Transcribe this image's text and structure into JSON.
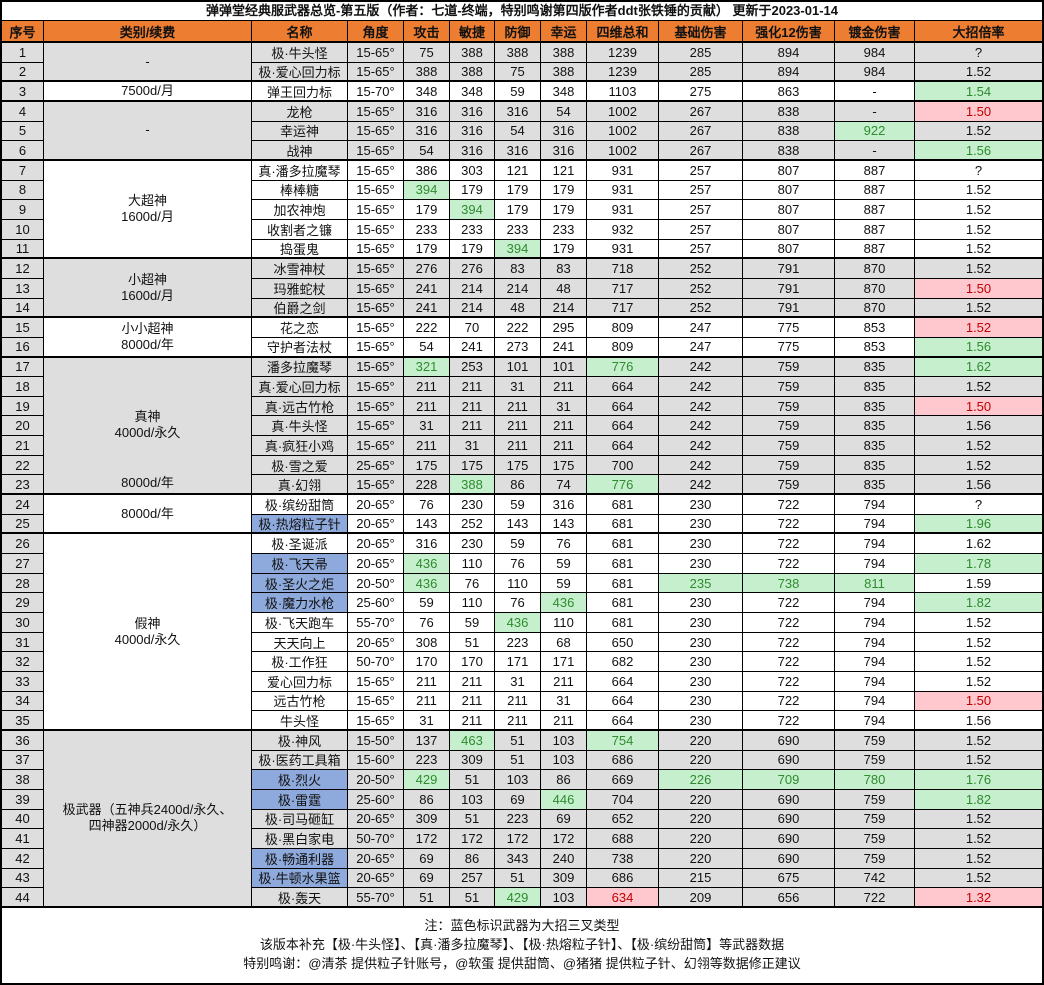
{
  "title": "弹弹堂经典服武器总览-第五版（作者：七道-终端，特别鸣谢第四版作者ddt张铁锤的贡献） 更新于2023-01-14",
  "columns": [
    "序号",
    "类别/续费",
    "名称",
    "角度",
    "攻击",
    "敏捷",
    "防御",
    "幸运",
    "四维总和",
    "基础伤害",
    "强化12伤害",
    "镀金伤害",
    "大招倍率"
  ],
  "row_fields": [
    "no",
    "name",
    "angle",
    "attack",
    "agility",
    "defense",
    "luck",
    "total",
    "base_damage",
    "enhance12_damage",
    "gold_damage",
    "ult_multiplier"
  ],
  "groups": [
    {
      "rows": [
        1,
        2
      ],
      "lines": [
        "-"
      ],
      "shade": "grey"
    },
    {
      "rows": [
        3,
        3
      ],
      "lines": [
        "7500d/月"
      ],
      "shade": "white"
    },
    {
      "rows": [
        4,
        6
      ],
      "lines": [
        "-"
      ],
      "shade": "grey"
    },
    {
      "rows": [
        7,
        11
      ],
      "lines": [
        "大超神",
        "1600d/月"
      ],
      "shade": "white"
    },
    {
      "rows": [
        12,
        14
      ],
      "lines": [
        "小超神",
        "1600d/月"
      ],
      "shade": "grey"
    },
    {
      "rows": [
        15,
        16
      ],
      "lines": [
        "小小超神",
        "8000d/年"
      ],
      "shade": "white"
    },
    {
      "rows": [
        17,
        23
      ],
      "lines": [
        "真神",
        "4000d/永久"
      ],
      "bottom_label": "8000d/年",
      "shade": "grey"
    },
    {
      "rows": [
        24,
        25
      ],
      "lines": [
        "8000d/年"
      ],
      "shade": "white"
    },
    {
      "rows": [
        26,
        35
      ],
      "lines": [
        "假神",
        "4000d/永久"
      ],
      "shade": "white"
    },
    {
      "rows": [
        36,
        44
      ],
      "lines": [
        "极武器（五神兵2400d/永久、",
        "四神器2000d/永久）"
      ],
      "shade": "grey"
    }
  ],
  "rows": [
    {
      "v": [
        "1",
        "极·牛头怪",
        "15-65°",
        "75",
        "388",
        "388",
        "388",
        "1239",
        "285",
        "894",
        "984",
        "?"
      ]
    },
    {
      "v": [
        "2",
        "极·爱心回力标",
        "15-65°",
        "388",
        "388",
        "75",
        "388",
        "1239",
        "285",
        "894",
        "984",
        "1.52"
      ]
    },
    {
      "v": [
        "3",
        "弹王回力标",
        "15-70°",
        "348",
        "348",
        "59",
        "348",
        "1103",
        "275",
        "863",
        "-",
        "1.54"
      ],
      "ult": "green"
    },
    {
      "v": [
        "4",
        "龙枪",
        "15-65°",
        "316",
        "316",
        "316",
        "54",
        "1002",
        "267",
        "838",
        "-",
        "1.50"
      ],
      "ult": "red"
    },
    {
      "v": [
        "5",
        "幸运神",
        "15-65°",
        "316",
        "316",
        "54",
        "316",
        "1002",
        "267",
        "838",
        "922",
        "1.52"
      ],
      "green": [
        "gold_damage"
      ]
    },
    {
      "v": [
        "6",
        "战神",
        "15-65°",
        "54",
        "316",
        "316",
        "316",
        "1002",
        "267",
        "838",
        "-",
        "1.56"
      ],
      "ult": "green"
    },
    {
      "v": [
        "7",
        "真·潘多拉魔琴",
        "15-65°",
        "386",
        "303",
        "121",
        "121",
        "931",
        "257",
        "807",
        "887",
        "?"
      ]
    },
    {
      "v": [
        "8",
        "棒棒糖",
        "15-65°",
        "394",
        "179",
        "179",
        "179",
        "931",
        "257",
        "807",
        "887",
        "1.52"
      ],
      "green": [
        "attack"
      ]
    },
    {
      "v": [
        "9",
        "加农神炮",
        "15-65°",
        "179",
        "394",
        "179",
        "179",
        "931",
        "257",
        "807",
        "887",
        "1.52"
      ],
      "green": [
        "agility"
      ]
    },
    {
      "v": [
        "10",
        "收割者之镰",
        "15-65°",
        "233",
        "233",
        "233",
        "233",
        "932",
        "257",
        "807",
        "887",
        "1.52"
      ]
    },
    {
      "v": [
        "11",
        "捣蛋鬼",
        "15-65°",
        "179",
        "179",
        "394",
        "179",
        "931",
        "257",
        "807",
        "887",
        "1.52"
      ],
      "green": [
        "defense"
      ]
    },
    {
      "v": [
        "12",
        "冰雪神杖",
        "15-65°",
        "276",
        "276",
        "83",
        "83",
        "718",
        "252",
        "791",
        "870",
        "1.52"
      ]
    },
    {
      "v": [
        "13",
        "玛雅蛇杖",
        "15-65°",
        "241",
        "214",
        "214",
        "48",
        "717",
        "252",
        "791",
        "870",
        "1.50"
      ],
      "ult": "red"
    },
    {
      "v": [
        "14",
        "伯爵之剑",
        "15-65°",
        "241",
        "214",
        "48",
        "214",
        "717",
        "252",
        "791",
        "870",
        "1.52"
      ]
    },
    {
      "v": [
        "15",
        "花之恋",
        "15-65°",
        "222",
        "70",
        "222",
        "295",
        "809",
        "247",
        "775",
        "853",
        "1.52"
      ],
      "ult": "red"
    },
    {
      "v": [
        "16",
        "守护者法杖",
        "15-65°",
        "54",
        "241",
        "273",
        "241",
        "809",
        "247",
        "775",
        "853",
        "1.56"
      ],
      "ult": "green"
    },
    {
      "v": [
        "17",
        "潘多拉魔琴",
        "15-65°",
        "321",
        "253",
        "101",
        "101",
        "776",
        "242",
        "759",
        "835",
        "1.62"
      ],
      "green": [
        "attack",
        "total"
      ],
      "ult": "green"
    },
    {
      "v": [
        "18",
        "真·爱心回力标",
        "15-65°",
        "211",
        "211",
        "31",
        "211",
        "664",
        "242",
        "759",
        "835",
        "1.52"
      ]
    },
    {
      "v": [
        "19",
        "真·远古竹枪",
        "15-65°",
        "211",
        "211",
        "211",
        "31",
        "664",
        "242",
        "759",
        "835",
        "1.50"
      ],
      "ult": "red"
    },
    {
      "v": [
        "20",
        "真·牛头怪",
        "15-65°",
        "31",
        "211",
        "211",
        "211",
        "664",
        "242",
        "759",
        "835",
        "1.56"
      ]
    },
    {
      "v": [
        "21",
        "真·疯狂小鸡",
        "15-65°",
        "211",
        "31",
        "211",
        "211",
        "664",
        "242",
        "759",
        "835",
        "1.52"
      ]
    },
    {
      "v": [
        "22",
        "极·雪之爱",
        "25-65°",
        "175",
        "175",
        "175",
        "175",
        "700",
        "242",
        "759",
        "835",
        "1.52"
      ]
    },
    {
      "v": [
        "23",
        "真·幻翎",
        "15-65°",
        "228",
        "388",
        "86",
        "74",
        "776",
        "242",
        "759",
        "835",
        "1.56"
      ],
      "green": [
        "agility",
        "total"
      ]
    },
    {
      "v": [
        "24",
        "极·缤纷甜筒",
        "20-65°",
        "76",
        "230",
        "59",
        "316",
        "681",
        "230",
        "722",
        "794",
        "?"
      ]
    },
    {
      "v": [
        "25",
        "极·热熔粒子针",
        "20-65°",
        "143",
        "252",
        "143",
        "143",
        "681",
        "230",
        "722",
        "794",
        "1.96"
      ],
      "blue": true,
      "ult": "green"
    },
    {
      "v": [
        "26",
        "极·圣诞派",
        "20-65°",
        "316",
        "230",
        "59",
        "76",
        "681",
        "230",
        "722",
        "794",
        "1.62"
      ]
    },
    {
      "v": [
        "27",
        "极·飞天帚",
        "20-65°",
        "436",
        "110",
        "76",
        "59",
        "681",
        "230",
        "722",
        "794",
        "1.78"
      ],
      "blue": true,
      "green": [
        "attack"
      ],
      "ult": "green"
    },
    {
      "v": [
        "28",
        "极·圣火之炬",
        "20-50°",
        "436",
        "76",
        "110",
        "59",
        "681",
        "235",
        "738",
        "811",
        "1.59"
      ],
      "blue": true,
      "green": [
        "attack",
        "base_damage",
        "enhance12_damage",
        "gold_damage"
      ]
    },
    {
      "v": [
        "29",
        "极·魔力水枪",
        "25-60°",
        "59",
        "110",
        "76",
        "436",
        "681",
        "230",
        "722",
        "794",
        "1.82"
      ],
      "blue": true,
      "green": [
        "luck"
      ],
      "ult": "green"
    },
    {
      "v": [
        "30",
        "极·飞天跑车",
        "55-70°",
        "76",
        "59",
        "436",
        "110",
        "681",
        "230",
        "722",
        "794",
        "1.52"
      ],
      "green": [
        "defense"
      ]
    },
    {
      "v": [
        "31",
        "天天向上",
        "20-65°",
        "308",
        "51",
        "223",
        "68",
        "650",
        "230",
        "722",
        "794",
        "1.52"
      ]
    },
    {
      "v": [
        "32",
        "极·工作狂",
        "50-70°",
        "170",
        "170",
        "171",
        "171",
        "682",
        "230",
        "722",
        "794",
        "1.52"
      ]
    },
    {
      "v": [
        "33",
        "爱心回力标",
        "15-65°",
        "211",
        "211",
        "31",
        "211",
        "664",
        "230",
        "722",
        "794",
        "1.52"
      ]
    },
    {
      "v": [
        "34",
        "远古竹枪",
        "15-65°",
        "211",
        "211",
        "211",
        "31",
        "664",
        "230",
        "722",
        "794",
        "1.50"
      ],
      "ult": "red"
    },
    {
      "v": [
        "35",
        "牛头怪",
        "15-65°",
        "31",
        "211",
        "211",
        "211",
        "664",
        "230",
        "722",
        "794",
        "1.56"
      ]
    },
    {
      "v": [
        "36",
        "极·神风",
        "15-50°",
        "137",
        "463",
        "51",
        "103",
        "754",
        "220",
        "690",
        "759",
        "1.52"
      ],
      "green": [
        "agility",
        "total"
      ]
    },
    {
      "v": [
        "37",
        "极·医药工具箱",
        "15-60°",
        "223",
        "309",
        "51",
        "103",
        "686",
        "220",
        "690",
        "759",
        "1.52"
      ]
    },
    {
      "v": [
        "38",
        "极·烈火",
        "20-50°",
        "429",
        "51",
        "103",
        "86",
        "669",
        "226",
        "709",
        "780",
        "1.76"
      ],
      "blue": true,
      "green": [
        "attack",
        "base_damage",
        "enhance12_damage",
        "gold_damage"
      ],
      "ult": "green"
    },
    {
      "v": [
        "39",
        "极·雷霆",
        "25-60°",
        "86",
        "103",
        "69",
        "446",
        "704",
        "220",
        "690",
        "759",
        "1.82"
      ],
      "blue": true,
      "green": [
        "luck"
      ],
      "ult": "green"
    },
    {
      "v": [
        "40",
        "极·司马砸缸",
        "20-65°",
        "309",
        "51",
        "223",
        "69",
        "652",
        "220",
        "690",
        "759",
        "1.52"
      ]
    },
    {
      "v": [
        "41",
        "极·黑白家电",
        "50-70°",
        "172",
        "172",
        "172",
        "172",
        "688",
        "220",
        "690",
        "759",
        "1.52"
      ]
    },
    {
      "v": [
        "42",
        "极·畅通利器",
        "20-65°",
        "69",
        "86",
        "343",
        "240",
        "738",
        "220",
        "690",
        "759",
        "1.52"
      ],
      "blue": true
    },
    {
      "v": [
        "43",
        "极·牛顿水果篮",
        "20-65°",
        "69",
        "257",
        "51",
        "309",
        "686",
        "215",
        "675",
        "742",
        "1.52"
      ],
      "blue": true
    },
    {
      "v": [
        "44",
        "极·轰天",
        "55-70°",
        "51",
        "51",
        "429",
        "103",
        "634",
        "209",
        "656",
        "722",
        "1.32"
      ],
      "green": [
        "defense"
      ],
      "red": [
        "total"
      ],
      "ult": "red"
    }
  ],
  "notes": [
    "注：蓝色标识武器为大招三叉类型",
    "该版本补充【极·牛头怪】、【真·潘多拉魔琴】、【极·热熔粒子针】、【极·缤纷甜筒】等武器数据",
    "特别鸣谢：@清茶 提供粒子针账号，@软蛋 提供甜筒、@猪猪 提供粒子针、幻翎等数据修正建议"
  ],
  "colors": {
    "header_bg": "#ED7D31",
    "row_grey": "#DEDEDE",
    "green_bg": "#C6EFCE",
    "green_text": "#2E8B2E",
    "red_bg": "#FFC7CE",
    "red_text": "#C00000",
    "blue_bg": "#8EA9DB",
    "border": "#000000"
  }
}
